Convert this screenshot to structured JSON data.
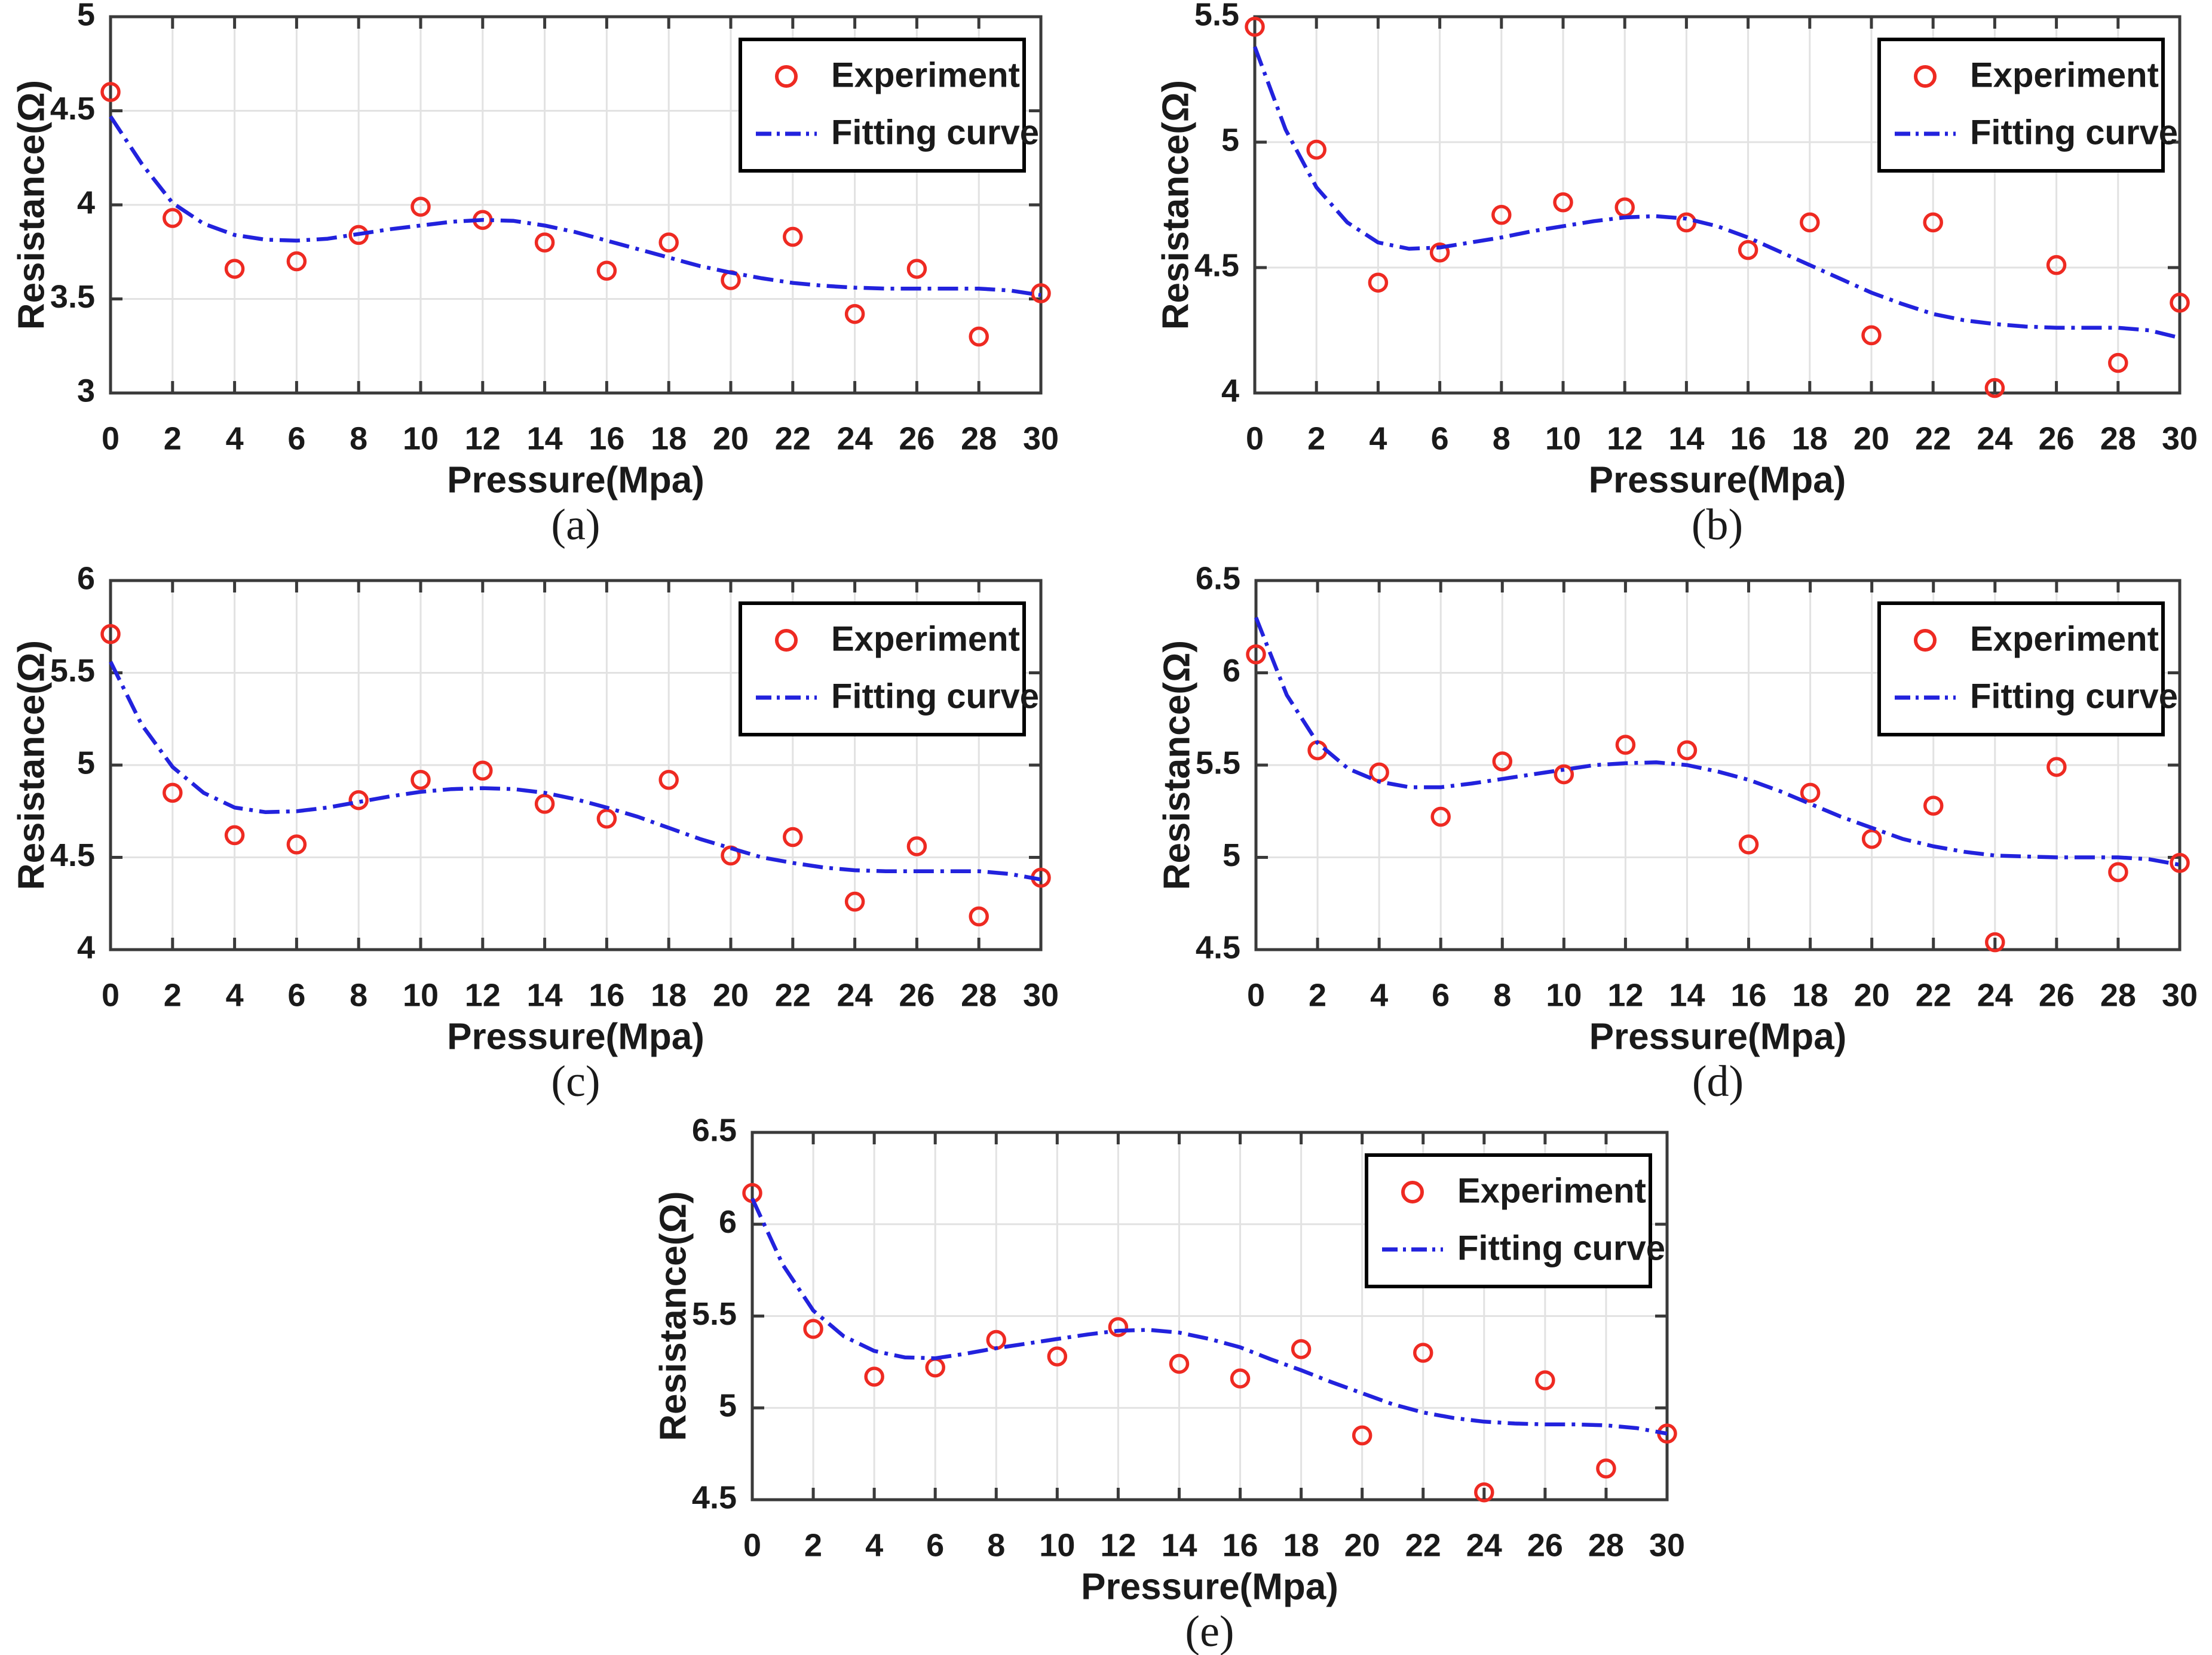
{
  "figure": {
    "background": "#ffffff",
    "legend": {
      "experiment_label": "Experiment",
      "fit_label": "Fitting curve"
    },
    "colors": {
      "experiment": "#ee2a22",
      "fit": "#2222dd",
      "grid": "#e2e2e2",
      "axis": "#3a3a3a",
      "text": "#1a1a1a",
      "legend_border": "#000000",
      "legend_fill": "#ffffff"
    }
  },
  "chart_data": [
    {
      "id": "a",
      "type": "scatter",
      "caption": "(a)",
      "xlabel": "Pressure(Mpa)",
      "ylabel": "Resistance(Ω)",
      "xlim": [
        0,
        30
      ],
      "ylim": [
        3,
        5
      ],
      "grid": true,
      "legend_position": "top-right",
      "xticks": [
        0,
        2,
        4,
        6,
        8,
        10,
        12,
        14,
        16,
        18,
        20,
        22,
        24,
        26,
        28,
        30
      ],
      "xtick_labels": [
        "0",
        "2",
        "4",
        "6",
        "8",
        "10",
        "12",
        "14",
        "16",
        "18",
        "20",
        "22",
        "24",
        "26",
        "28",
        "30"
      ],
      "yticks": [
        3,
        3.5,
        4,
        4.5,
        5
      ],
      "ytick_labels": [
        "3",
        "3.5",
        "4",
        "4.5",
        "5"
      ],
      "series": [
        {
          "name": "Experiment",
          "kind": "scatter",
          "x": [
            0,
            2,
            4,
            6,
            8,
            10,
            12,
            14,
            16,
            18,
            20,
            22,
            24,
            26,
            28,
            30
          ],
          "y": [
            4.6,
            3.93,
            3.66,
            3.7,
            3.84,
            3.99,
            3.92,
            3.8,
            3.65,
            3.8,
            3.6,
            3.83,
            3.42,
            3.66,
            3.3,
            3.53
          ]
        },
        {
          "name": "Fitting curve",
          "kind": "line",
          "x": [
            0,
            1,
            2,
            3,
            4,
            5,
            6,
            7,
            8,
            9,
            10,
            11,
            12,
            13,
            14,
            15,
            16,
            17,
            18,
            19,
            20,
            21,
            22,
            23,
            24,
            25,
            26,
            27,
            28,
            29,
            30
          ],
          "y": [
            4.47,
            4.22,
            4.01,
            3.9,
            3.84,
            3.815,
            3.81,
            3.82,
            3.845,
            3.87,
            3.89,
            3.91,
            3.92,
            3.915,
            3.89,
            3.855,
            3.81,
            3.765,
            3.72,
            3.675,
            3.64,
            3.61,
            3.585,
            3.57,
            3.56,
            3.555,
            3.555,
            3.555,
            3.555,
            3.545,
            3.52
          ]
        }
      ]
    },
    {
      "id": "b",
      "type": "scatter",
      "caption": "(b)",
      "xlabel": "Pressure(Mpa)",
      "ylabel": "Resistance(Ω)",
      "xlim": [
        0,
        30
      ],
      "ylim": [
        4,
        5.5
      ],
      "grid": true,
      "legend_position": "top-right",
      "xticks": [
        0,
        2,
        4,
        6,
        8,
        10,
        12,
        14,
        16,
        18,
        20,
        22,
        24,
        26,
        28,
        30
      ],
      "xtick_labels": [
        "0",
        "2",
        "4",
        "6",
        "8",
        "10",
        "12",
        "14",
        "16",
        "18",
        "20",
        "22",
        "24",
        "26",
        "28",
        "30"
      ],
      "yticks": [
        4,
        4.5,
        5,
        5.5
      ],
      "ytick_labels": [
        "4",
        "4.5",
        "5",
        "5.5"
      ],
      "series": [
        {
          "name": "Experiment",
          "kind": "scatter",
          "x": [
            0,
            2,
            4,
            6,
            8,
            10,
            12,
            14,
            16,
            18,
            20,
            22,
            24,
            26,
            28,
            30
          ],
          "y": [
            5.46,
            4.97,
            4.44,
            4.56,
            4.71,
            4.76,
            4.74,
            4.68,
            4.57,
            4.68,
            4.23,
            4.68,
            4.02,
            4.51,
            4.12,
            4.36
          ]
        },
        {
          "name": "Fitting curve",
          "kind": "line",
          "x": [
            0,
            1,
            2,
            3,
            4,
            5,
            6,
            7,
            8,
            9,
            10,
            11,
            12,
            13,
            14,
            15,
            16,
            17,
            18,
            19,
            20,
            21,
            22,
            23,
            24,
            25,
            26,
            27,
            28,
            29,
            30
          ],
          "y": [
            5.38,
            5.05,
            4.82,
            4.68,
            4.6,
            4.575,
            4.58,
            4.6,
            4.62,
            4.645,
            4.665,
            4.685,
            4.7,
            4.705,
            4.695,
            4.665,
            4.62,
            4.565,
            4.51,
            4.455,
            4.4,
            4.355,
            4.315,
            4.29,
            4.275,
            4.265,
            4.26,
            4.26,
            4.26,
            4.25,
            4.22
          ]
        }
      ]
    },
    {
      "id": "c",
      "type": "scatter",
      "caption": "(c)",
      "xlabel": "Pressure(Mpa)",
      "ylabel": "Resistance(Ω)",
      "xlim": [
        0,
        30
      ],
      "ylim": [
        4,
        6
      ],
      "grid": true,
      "legend_position": "top-right",
      "xticks": [
        0,
        2,
        4,
        6,
        8,
        10,
        12,
        14,
        16,
        18,
        20,
        22,
        24,
        26,
        28,
        30
      ],
      "xtick_labels": [
        "0",
        "2",
        "4",
        "6",
        "8",
        "10",
        "12",
        "14",
        "16",
        "18",
        "20",
        "22",
        "24",
        "26",
        "28",
        "30"
      ],
      "yticks": [
        4,
        4.5,
        5,
        5.5,
        6
      ],
      "ytick_labels": [
        "4",
        "4.5",
        "5",
        "5.5",
        "6"
      ],
      "series": [
        {
          "name": "Experiment",
          "kind": "scatter",
          "x": [
            0,
            2,
            4,
            6,
            8,
            10,
            12,
            14,
            16,
            18,
            20,
            22,
            24,
            26,
            28,
            30
          ],
          "y": [
            5.71,
            4.85,
            4.62,
            4.57,
            4.81,
            4.92,
            4.97,
            4.79,
            4.71,
            4.92,
            4.51,
            4.61,
            4.26,
            4.56,
            4.18,
            4.39
          ]
        },
        {
          "name": "Fitting curve",
          "kind": "line",
          "x": [
            0,
            1,
            2,
            3,
            4,
            5,
            6,
            7,
            8,
            9,
            10,
            11,
            12,
            13,
            14,
            15,
            16,
            17,
            18,
            19,
            20,
            21,
            22,
            23,
            24,
            25,
            26,
            27,
            28,
            29,
            30
          ],
          "y": [
            5.56,
            5.22,
            4.99,
            4.85,
            4.77,
            4.745,
            4.75,
            4.77,
            4.8,
            4.83,
            4.855,
            4.87,
            4.875,
            4.87,
            4.85,
            4.815,
            4.77,
            4.72,
            4.66,
            4.6,
            4.55,
            4.5,
            4.47,
            4.445,
            4.43,
            4.425,
            4.425,
            4.425,
            4.425,
            4.41,
            4.38
          ]
        }
      ]
    },
    {
      "id": "d",
      "type": "scatter",
      "caption": "(d)",
      "xlabel": "Pressure(Mpa)",
      "ylabel": "Resistance(Ω)",
      "xlim": [
        0,
        30
      ],
      "ylim": [
        4.5,
        6.5
      ],
      "grid": true,
      "legend_position": "top-right",
      "xticks": [
        0,
        2,
        4,
        6,
        8,
        10,
        12,
        14,
        16,
        18,
        20,
        22,
        24,
        26,
        28,
        30
      ],
      "xtick_labels": [
        "0",
        "2",
        "4",
        "6",
        "8",
        "10",
        "12",
        "14",
        "16",
        "18",
        "20",
        "22",
        "24",
        "26",
        "28",
        "30"
      ],
      "yticks": [
        4.5,
        5,
        5.5,
        6,
        6.5
      ],
      "ytick_labels": [
        "4.5",
        "5",
        "5.5",
        "6",
        "6.5"
      ],
      "series": [
        {
          "name": "Experiment",
          "kind": "scatter",
          "x": [
            0,
            2,
            4,
            6,
            8,
            10,
            12,
            14,
            16,
            18,
            20,
            22,
            24,
            26,
            28,
            30
          ],
          "y": [
            6.1,
            5.58,
            5.46,
            5.22,
            5.52,
            5.45,
            5.61,
            5.58,
            5.07,
            5.35,
            5.1,
            5.28,
            4.54,
            5.49,
            4.92,
            4.97
          ]
        },
        {
          "name": "Fitting curve",
          "kind": "line",
          "x": [
            0,
            1,
            2,
            3,
            4,
            5,
            6,
            7,
            8,
            9,
            10,
            11,
            12,
            13,
            14,
            15,
            16,
            17,
            18,
            19,
            20,
            21,
            22,
            23,
            24,
            25,
            26,
            27,
            28,
            29,
            30
          ],
          "y": [
            6.3,
            5.88,
            5.62,
            5.48,
            5.41,
            5.38,
            5.38,
            5.4,
            5.425,
            5.45,
            5.475,
            5.5,
            5.51,
            5.515,
            5.5,
            5.465,
            5.42,
            5.36,
            5.29,
            5.22,
            5.16,
            5.1,
            5.06,
            5.03,
            5.01,
            5.005,
            5.0,
            5.0,
            5.0,
            4.99,
            4.96
          ]
        }
      ]
    },
    {
      "id": "e",
      "type": "scatter",
      "caption": "(e)",
      "xlabel": "Pressure(Mpa)",
      "ylabel": "Resistance(Ω)",
      "xlim": [
        0,
        30
      ],
      "ylim": [
        4.5,
        6.5
      ],
      "grid": true,
      "legend_position": "top-right",
      "xticks": [
        0,
        2,
        4,
        6,
        8,
        10,
        12,
        14,
        16,
        18,
        20,
        22,
        24,
        26,
        28,
        30
      ],
      "xtick_labels": [
        "0",
        "2",
        "4",
        "6",
        "8",
        "10",
        "12",
        "14",
        "16",
        "18",
        "20",
        "22",
        "24",
        "26",
        "28",
        "30"
      ],
      "yticks": [
        4.5,
        5,
        5.5,
        6,
        6.5
      ],
      "ytick_labels": [
        "4.5",
        "5",
        "5.5",
        "6",
        "6.5"
      ],
      "series": [
        {
          "name": "Experiment",
          "kind": "scatter",
          "x": [
            0,
            2,
            4,
            6,
            8,
            10,
            12,
            14,
            16,
            18,
            20,
            22,
            24,
            26,
            28,
            30
          ],
          "y": [
            6.17,
            5.43,
            5.17,
            5.22,
            5.37,
            5.28,
            5.44,
            5.24,
            5.16,
            5.32,
            4.85,
            5.3,
            4.54,
            5.15,
            4.67,
            4.86
          ]
        },
        {
          "name": "Fitting curve",
          "kind": "line",
          "x": [
            0,
            1,
            2,
            3,
            4,
            5,
            6,
            7,
            8,
            9,
            10,
            11,
            12,
            13,
            14,
            15,
            16,
            17,
            18,
            19,
            20,
            21,
            22,
            23,
            24,
            25,
            26,
            27,
            28,
            29,
            30
          ],
          "y": [
            6.14,
            5.78,
            5.53,
            5.39,
            5.31,
            5.275,
            5.27,
            5.295,
            5.325,
            5.35,
            5.375,
            5.4,
            5.42,
            5.425,
            5.41,
            5.375,
            5.33,
            5.265,
            5.205,
            5.14,
            5.08,
            5.02,
            4.975,
            4.945,
            4.925,
            4.915,
            4.91,
            4.91,
            4.905,
            4.89,
            4.86
          ]
        }
      ]
    }
  ]
}
